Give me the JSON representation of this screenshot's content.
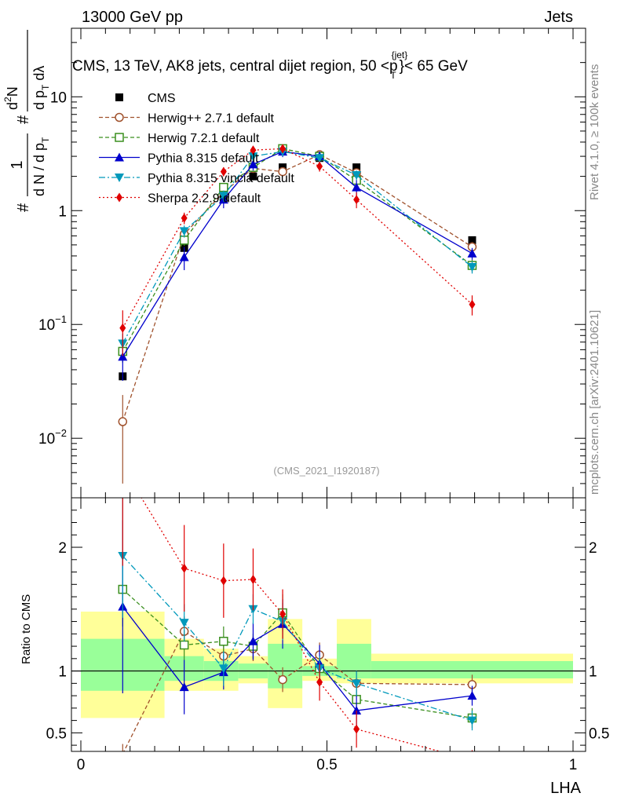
{
  "header": {
    "left": "13000 GeV pp",
    "right": "Jets",
    "title_main": "CMS, 13 TeV, AK8 jets, central dijet region, 50 <p",
    "title_sup": "{jet}",
    "title_sub": "T",
    "title_end": "}< 65 GeV"
  },
  "side_labels": {
    "rivet": "Rivet 4.1.0, ≥ 100k events",
    "mcplots": "mcplots.cern.ch [arXiv:2401.10621]"
  },
  "watermark": "(CMS_2021_I1920187)",
  "colors": {
    "cms": "#000000",
    "herwigpp": "#a0522d",
    "herwig7": "#3a8f1e",
    "pythia": "#0000cc",
    "vincia": "#0099bb",
    "sherpa": "#e00000",
    "band_outer": "#ffff99",
    "band_inner": "#99ff99"
  },
  "chart_data": [
    {
      "type": "line",
      "panel": "main",
      "yscale": "log",
      "ylabel": {
        "hash1": "#",
        "one": "1",
        "denom": "d N / d p",
        "denom_sub": "T",
        "hash2": "#",
        "num": "d",
        "num_sup": "2",
        "num_end": "N",
        "denom2": "d p",
        "denom2_sub": "T",
        "denom2_end": " dλ"
      },
      "xlim": [
        0,
        1
      ],
      "ylim": [
        0.003,
        40
      ],
      "y_ticks": [
        {
          "value": 10,
          "label": "10"
        },
        {
          "value": 1,
          "label": "1"
        },
        {
          "value": 0.1,
          "base": "10",
          "exp": "−1"
        },
        {
          "value": 0.01,
          "base": "10",
          "exp": "−2"
        }
      ],
      "x": [
        0.085,
        0.21,
        0.29,
        0.35,
        0.41,
        0.485,
        0.56,
        0.795
      ],
      "legend_position": "top-left",
      "series": [
        {
          "id": "cms",
          "name": "CMS",
          "marker": "square-filled",
          "line": "none",
          "values": [
            0.035,
            0.47,
            1.3,
            2.0,
            2.4,
            2.9,
            2.4,
            0.55
          ]
        },
        {
          "id": "herwigpp",
          "name": "Herwig++ 2.7.1 default",
          "marker": "circle-open",
          "line": "dashed",
          "values": [
            0.014,
            0.62,
            1.45,
            2.35,
            2.2,
            3.1,
            2.15,
            0.48
          ],
          "err": [
            0.01,
            0.06,
            0.12,
            0.2,
            0.2,
            0.25,
            0.2,
            0.05
          ]
        },
        {
          "id": "herwig7",
          "name": "Herwig 7.2.1 default",
          "marker": "square-open",
          "line": "dashed",
          "values": [
            0.058,
            0.55,
            1.6,
            2.4,
            3.5,
            3.0,
            1.85,
            0.33
          ],
          "err": [
            0.012,
            0.06,
            0.15,
            0.2,
            0.3,
            0.25,
            0.2,
            0.04
          ]
        },
        {
          "id": "pythia",
          "name": "Pythia 8.315 default",
          "marker": "triangle-up",
          "line": "solid",
          "values": [
            0.052,
            0.39,
            1.25,
            2.55,
            3.3,
            3.0,
            1.6,
            0.42
          ],
          "err": [
            0.02,
            0.09,
            0.2,
            0.3,
            0.35,
            0.3,
            0.25,
            0.05
          ]
        },
        {
          "id": "vincia",
          "name": "Pythia 8.315 vincia default",
          "marker": "triangle-down",
          "line": "dashdot",
          "values": [
            0.068,
            0.66,
            1.35,
            3.0,
            3.3,
            2.9,
            2.05,
            0.32
          ],
          "err": [
            0.015,
            0.08,
            0.15,
            0.25,
            0.3,
            0.25,
            0.2,
            0.04
          ]
        },
        {
          "id": "sherpa",
          "name": "Sherpa 2.2.9 default",
          "marker": "diamond",
          "line": "dotted",
          "values": [
            0.093,
            0.86,
            2.2,
            3.4,
            3.5,
            2.45,
            1.25,
            0.15
          ],
          "err": [
            0.04,
            0.1,
            0.2,
            0.3,
            0.3,
            0.25,
            0.2,
            0.03
          ]
        }
      ]
    },
    {
      "type": "line",
      "panel": "ratio",
      "xlabel": "LHA",
      "ylabel": "Ratio to CMS",
      "xlim": [
        0,
        1
      ],
      "ylim": [
        0.35,
        2.4
      ],
      "x_ticks": [
        {
          "value": 0,
          "label": "0"
        },
        {
          "value": 0.5,
          "label": "0.5"
        },
        {
          "value": 1,
          "label": "1"
        }
      ],
      "y_ticks": [
        {
          "value": 2,
          "label": "2"
        },
        {
          "value": 1,
          "label": "1"
        },
        {
          "value": 0.5,
          "label": "0.5"
        }
      ],
      "x": [
        0.085,
        0.21,
        0.29,
        0.35,
        0.41,
        0.485,
        0.56,
        0.795
      ],
      "bands": [
        {
          "x0": 0.0,
          "x1": 0.17,
          "outer": [
            0.62,
            1.48
          ],
          "inner": [
            0.84,
            1.26
          ]
        },
        {
          "x0": 0.17,
          "x1": 0.25,
          "outer": [
            0.84,
            1.26
          ],
          "inner": [
            0.92,
            1.12
          ]
        },
        {
          "x0": 0.25,
          "x1": 0.32,
          "outer": [
            0.84,
            1.18
          ],
          "inner": [
            0.92,
            1.08
          ]
        },
        {
          "x0": 0.32,
          "x1": 0.38,
          "outer": [
            0.9,
            1.12
          ],
          "inner": [
            0.94,
            1.06
          ]
        },
        {
          "x0": 0.38,
          "x1": 0.45,
          "outer": [
            0.7,
            1.42
          ],
          "inner": [
            0.86,
            1.22
          ]
        },
        {
          "x0": 0.45,
          "x1": 0.52,
          "outer": [
            0.92,
            1.1
          ],
          "inner": [
            0.96,
            1.04
          ]
        },
        {
          "x0": 0.52,
          "x1": 0.59,
          "outer": [
            0.9,
            1.42
          ],
          "inner": [
            0.94,
            1.22
          ]
        },
        {
          "x0": 0.59,
          "x1": 1.0,
          "outer": [
            0.9,
            1.14
          ],
          "inner": [
            0.94,
            1.08
          ]
        }
      ],
      "series": [
        {
          "id": "herwigpp",
          "name": "Herwig++ 2.7.1 default",
          "values": [
            0.33,
            1.32,
            1.12,
            1.18,
            0.93,
            1.13,
            0.9,
            0.89
          ],
          "err": [
            0.08,
            0.12,
            0.1,
            0.1,
            0.1,
            0.1,
            0.1,
            0.08
          ]
        },
        {
          "id": "herwig7",
          "name": "Herwig 7.2.1 default",
          "values": [
            1.66,
            1.21,
            1.24,
            1.2,
            1.47,
            1.02,
            0.77,
            0.62
          ],
          "err": [
            0.3,
            0.12,
            0.12,
            0.1,
            0.15,
            0.1,
            0.1,
            0.08
          ]
        },
        {
          "id": "pythia",
          "name": "Pythia 8.315 default",
          "values": [
            1.52,
            0.87,
            0.99,
            1.24,
            1.38,
            1.06,
            0.68,
            0.8
          ],
          "err": [
            0.7,
            0.22,
            0.14,
            0.15,
            0.2,
            0.15,
            0.12,
            0.08
          ]
        },
        {
          "id": "vincia",
          "name": "Pythia 8.315 vincia default",
          "values": [
            1.93,
            1.39,
            1.02,
            1.5,
            1.4,
            1.02,
            0.9,
            0.6
          ],
          "err": [
            0.5,
            0.15,
            0.14,
            0.12,
            0.15,
            0.1,
            0.1,
            0.08
          ]
        },
        {
          "id": "sherpa",
          "name": "Sherpa 2.2.9 default",
          "values": [
            2.65,
            1.83,
            1.73,
            1.74,
            1.46,
            0.91,
            0.53,
            0.28
          ],
          "err": [
            0.8,
            0.35,
            0.3,
            0.25,
            0.2,
            0.15,
            0.15,
            0.08
          ]
        }
      ]
    }
  ]
}
